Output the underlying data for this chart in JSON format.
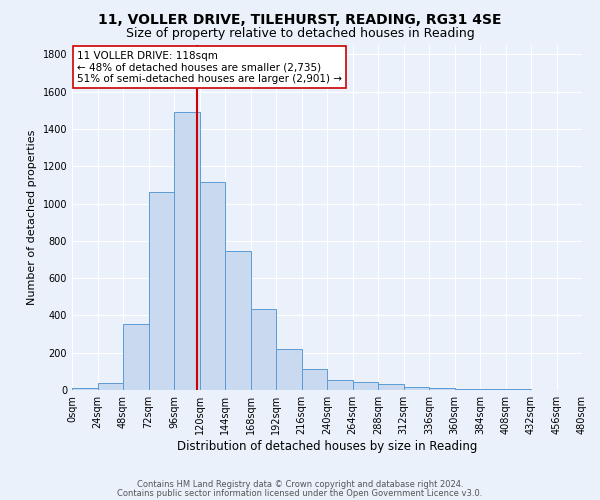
{
  "title1": "11, VOLLER DRIVE, TILEHURST, READING, RG31 4SE",
  "title2": "Size of property relative to detached houses in Reading",
  "xlabel": "Distribution of detached houses by size in Reading",
  "ylabel": "Number of detached properties",
  "bar_edges": [
    0,
    24,
    48,
    72,
    96,
    120,
    144,
    168,
    192,
    216,
    240,
    264,
    288,
    312,
    336,
    360,
    384,
    408,
    432,
    456,
    480
  ],
  "bar_values": [
    10,
    35,
    355,
    1060,
    1490,
    1115,
    745,
    435,
    220,
    110,
    55,
    45,
    30,
    15,
    13,
    5,
    4,
    3,
    2,
    1
  ],
  "bar_color": "#c9d9f0",
  "bar_edgecolor": "#5b9bd5",
  "property_value": 118,
  "vline_color": "#cc0000",
  "annotation_text": "11 VOLLER DRIVE: 118sqm\n← 48% of detached houses are smaller (2,735)\n51% of semi-detached houses are larger (2,901) →",
  "annotation_box_color": "#ffffff",
  "annotation_box_edgecolor": "#cc0000",
  "ylim": [
    0,
    1850
  ],
  "yticks": [
    0,
    200,
    400,
    600,
    800,
    1000,
    1200,
    1400,
    1600,
    1800
  ],
  "tick_labels": [
    "0sqm",
    "24sqm",
    "48sqm",
    "72sqm",
    "96sqm",
    "120sqm",
    "144sqm",
    "168sqm",
    "192sqm",
    "216sqm",
    "240sqm",
    "264sqm",
    "288sqm",
    "312sqm",
    "336sqm",
    "360sqm",
    "384sqm",
    "408sqm",
    "432sqm",
    "456sqm",
    "480sqm"
  ],
  "background_color": "#eaf1fb",
  "footer_line1": "Contains HM Land Registry data © Crown copyright and database right 2024.",
  "footer_line2": "Contains public sector information licensed under the Open Government Licence v3.0.",
  "title1_fontsize": 10,
  "title2_fontsize": 9,
  "xlabel_fontsize": 8.5,
  "ylabel_fontsize": 8,
  "tick_fontsize": 7,
  "annotation_fontsize": 7.5,
  "footer_fontsize": 6
}
